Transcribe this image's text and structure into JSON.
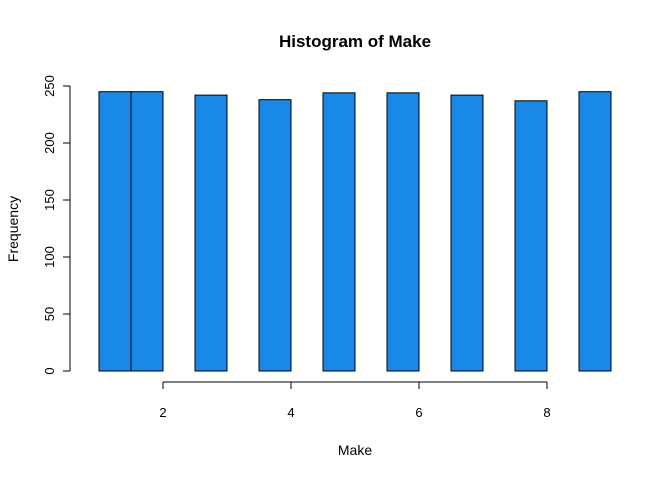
{
  "chart_data": {
    "type": "bar",
    "title": "Histogram of Make",
    "xlabel": "Make",
    "ylabel": "Frequency",
    "bar_color": "#1a88e6",
    "bins": [
      {
        "start": 1.0,
        "end": 1.5,
        "value": 245
      },
      {
        "start": 1.5,
        "end": 2.0,
        "value": 245
      },
      {
        "start": 2.5,
        "end": 3.0,
        "value": 242
      },
      {
        "start": 3.5,
        "end": 4.0,
        "value": 238
      },
      {
        "start": 4.5,
        "end": 5.0,
        "value": 244
      },
      {
        "start": 5.5,
        "end": 6.0,
        "value": 244
      },
      {
        "start": 6.5,
        "end": 7.0,
        "value": 242
      },
      {
        "start": 7.5,
        "end": 8.0,
        "value": 237
      },
      {
        "start": 8.5,
        "end": 9.0,
        "value": 245
      }
    ],
    "xlim": [
      1,
      9
    ],
    "ylim": [
      0,
      250
    ],
    "x_ticks": [
      2,
      4,
      6,
      8
    ],
    "y_ticks": [
      0,
      50,
      100,
      150,
      200,
      250
    ],
    "grid": false
  }
}
